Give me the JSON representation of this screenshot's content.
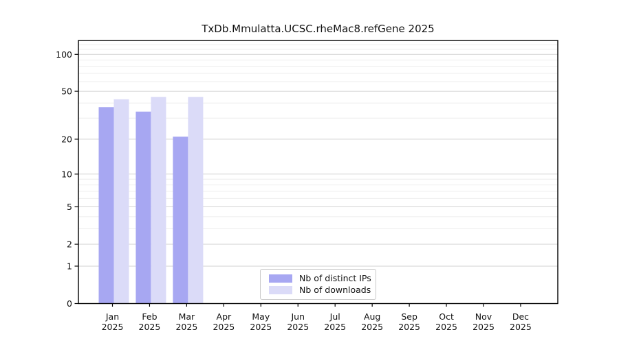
{
  "title": "TxDb.Mmulatta.UCSC.rheMac8.refGene 2025",
  "chart_data": {
    "type": "bar",
    "title": "TxDb.Mmulatta.UCSC.rheMac8.refGene 2025",
    "scale": "pseudo-log (log1p)",
    "grid": "horizontal",
    "legend_position": "lower center",
    "year_label": "2025",
    "months": [
      "Jan",
      "Feb",
      "Mar",
      "Apr",
      "May",
      "Jun",
      "Jul",
      "Aug",
      "Sep",
      "Oct",
      "Nov",
      "Dec"
    ],
    "categories": [
      "Jan 2025",
      "Feb 2025",
      "Mar 2025",
      "Apr 2025",
      "May 2025",
      "Jun 2025",
      "Jul 2025",
      "Aug 2025",
      "Sep 2025",
      "Oct 2025",
      "Nov 2025",
      "Dec 2025"
    ],
    "series": [
      {
        "name": "Nb of distinct IPs",
        "color": "#a7a7f2",
        "values": [
          37,
          34,
          21,
          0,
          0,
          0,
          0,
          0,
          0,
          0,
          0,
          0
        ]
      },
      {
        "name": "Nb of downloads",
        "color": "#dbdbf8",
        "values": [
          43,
          45,
          45,
          0,
          0,
          0,
          0,
          0,
          0,
          0,
          0,
          0
        ]
      }
    ],
    "yticks": [
      0,
      1,
      2,
      5,
      10,
      20,
      50,
      100
    ],
    "minor_yticks": [
      3,
      4,
      6,
      7,
      8,
      9,
      30,
      40,
      60,
      70,
      80,
      90,
      110,
      120
    ],
    "ylim": [
      0,
      130
    ],
    "xlabel": "",
    "ylabel": "",
    "colors": {
      "axis": "#000000",
      "major_grid": "#d2d2d2",
      "minor_grid": "#ededed",
      "tick_label": "#111111",
      "legend_border": "#c9c9c9"
    }
  }
}
